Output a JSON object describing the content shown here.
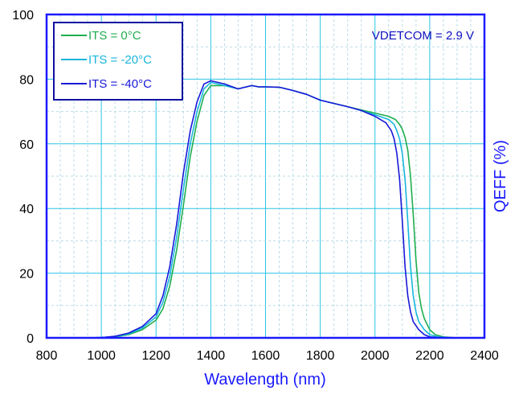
{
  "chart_data": {
    "type": "line",
    "title": "",
    "xlabel": "Wavelength (nm)",
    "ylabel": "QEFF (%)",
    "xlim": [
      800,
      2400
    ],
    "ylim": [
      0,
      100
    ],
    "xticks": [
      800,
      1000,
      1200,
      1400,
      1600,
      1800,
      2000,
      2200,
      2400
    ],
    "yticks": [
      0,
      20,
      40,
      60,
      80,
      100
    ],
    "grid": true,
    "legend_position": "top-left",
    "annotation": "VDETCOM = 2.9 V",
    "series": [
      {
        "name": "ITS = 0°C",
        "color": "#1fae4f",
        "x": [
          950,
          1000,
          1050,
          1100,
          1150,
          1200,
          1225,
          1250,
          1275,
          1300,
          1325,
          1350,
          1375,
          1400,
          1425,
          1450,
          1500,
          1525,
          1550,
          1575,
          1600,
          1650,
          1700,
          1750,
          1800,
          1850,
          1900,
          1950,
          2000,
          2050,
          2075,
          2090,
          2100,
          2110,
          2120,
          2130,
          2140,
          2150,
          2160,
          2170,
          2180,
          2200,
          2220,
          2250,
          2280,
          2300
        ],
        "y": [
          0,
          0.1,
          0.3,
          1,
          2.5,
          5.5,
          9,
          16,
          27,
          41,
          56,
          67,
          75,
          78,
          78,
          78,
          77,
          77.5,
          78,
          77.6,
          77.6,
          77.5,
          76.5,
          75.3,
          73.5,
          72.5,
          71.5,
          70.5,
          69.5,
          68.5,
          67.5,
          66,
          64.5,
          62,
          58,
          50,
          38,
          24,
          14,
          9,
          6,
          2.5,
          1,
          0.3,
          0.1,
          0
        ]
      },
      {
        "name": "ITS = -20°C",
        "color": "#19b6dc",
        "x": [
          950,
          1000,
          1050,
          1100,
          1150,
          1200,
          1225,
          1250,
          1275,
          1300,
          1325,
          1350,
          1375,
          1400,
          1425,
          1450,
          1500,
          1525,
          1550,
          1575,
          1600,
          1650,
          1700,
          1750,
          1800,
          1850,
          1900,
          1950,
          2000,
          2050,
          2070,
          2080,
          2090,
          2100,
          2110,
          2120,
          2130,
          2140,
          2150,
          2160,
          2180,
          2200,
          2230,
          2260,
          2280
        ],
        "y": [
          0,
          0.1,
          0.4,
          1.2,
          3,
          6.5,
          11,
          19,
          31,
          46,
          60,
          70,
          77,
          79,
          78.5,
          78,
          77,
          77.5,
          78,
          77.6,
          77.6,
          77.5,
          76.5,
          75.3,
          73.5,
          72.5,
          71.5,
          70.3,
          69,
          67.5,
          66,
          64,
          61.5,
          57,
          49,
          36,
          22,
          13,
          8,
          5,
          2.5,
          1,
          0.3,
          0.1,
          0
        ]
      },
      {
        "name": "ITS = -40°C",
        "color": "#1818d8",
        "x": [
          950,
          1000,
          1050,
          1100,
          1150,
          1200,
          1225,
          1250,
          1275,
          1300,
          1325,
          1350,
          1375,
          1400,
          1425,
          1450,
          1500,
          1525,
          1550,
          1575,
          1600,
          1650,
          1700,
          1750,
          1800,
          1850,
          1900,
          1950,
          2000,
          2040,
          2060,
          2070,
          2080,
          2090,
          2100,
          2110,
          2120,
          2130,
          2140,
          2160,
          2180,
          2200,
          2230,
          2260
        ],
        "y": [
          0,
          0.1,
          0.5,
          1.5,
          3.5,
          7.5,
          13,
          22,
          35,
          51,
          64,
          73,
          78.5,
          79.5,
          79,
          78.5,
          77,
          77.5,
          78,
          77.6,
          77.6,
          77.5,
          76.5,
          75.3,
          73.5,
          72.5,
          71.5,
          70.3,
          68.5,
          66.5,
          64,
          61.5,
          57,
          49,
          36,
          22,
          13,
          8,
          5,
          2.5,
          1,
          0.3,
          0.1,
          0
        ]
      }
    ]
  }
}
